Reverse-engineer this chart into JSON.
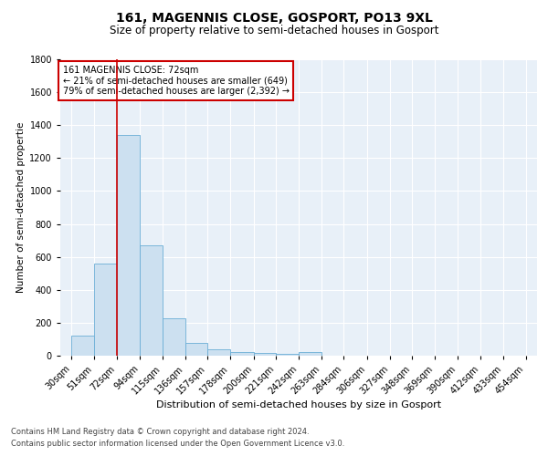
{
  "title": "161, MAGENNIS CLOSE, GOSPORT, PO13 9XL",
  "subtitle": "Size of property relative to semi-detached houses in Gosport",
  "xlabel": "Distribution of semi-detached houses by size in Gosport",
  "ylabel": "Number of semi-detached propertie",
  "footnote1": "Contains HM Land Registry data © Crown copyright and database right 2024.",
  "footnote2": "Contains public sector information licensed under the Open Government Licence v3.0.",
  "annotation_title": "161 MAGENNIS CLOSE: 72sqm",
  "annotation_line2": "← 21% of semi-detached houses are smaller (649)",
  "annotation_line3": "79% of semi-detached houses are larger (2,392) →",
  "bar_edges": [
    30,
    51,
    72,
    94,
    115,
    136,
    157,
    178,
    200,
    221,
    242,
    263,
    284,
    306,
    327,
    348,
    369,
    390,
    412,
    433,
    454
  ],
  "bar_heights": [
    120,
    560,
    1340,
    670,
    225,
    80,
    38,
    20,
    15,
    10,
    20,
    0,
    0,
    0,
    0,
    0,
    0,
    0,
    0,
    0
  ],
  "bar_color": "#cce0f0",
  "bar_edge_color": "#6aaed6",
  "vline_x": 72,
  "vline_color": "#cc0000",
  "ylim": [
    0,
    1800
  ],
  "background_color": "#e8f0f8",
  "grid_color": "#ffffff",
  "annotation_box_color": "#ffffff",
  "annotation_box_edge": "#cc0000",
  "title_fontsize": 10,
  "subtitle_fontsize": 8.5,
  "xlabel_fontsize": 8,
  "ylabel_fontsize": 7.5,
  "tick_fontsize": 7,
  "annotation_fontsize": 7,
  "footnote_fontsize": 6
}
